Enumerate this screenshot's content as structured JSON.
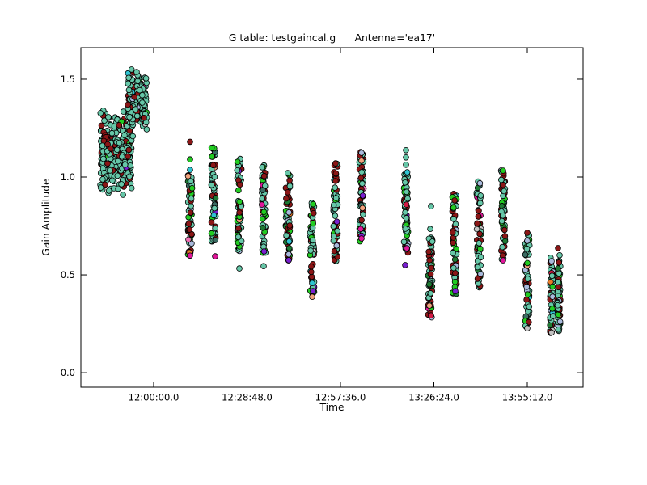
{
  "chart_data": {
    "type": "scatter",
    "title": "G table: testgaincal.g      Antenna='ea17'",
    "xlabel": "Time",
    "ylabel": "Gain Amplitude",
    "grid": false,
    "legend": "none",
    "background_color": "#ffffff",
    "axis_color": "#000000",
    "xlim_seconds": [
      41854,
      51144
    ],
    "ylim": [
      -0.074,
      1.661
    ],
    "x_ticks": [
      {
        "seconds": 43200,
        "label": "12:00:00.0"
      },
      {
        "seconds": 44928,
        "label": "12:28:48.0"
      },
      {
        "seconds": 46656,
        "label": "12:57:36.0"
      },
      {
        "seconds": 48384,
        "label": "13:26:24.0"
      },
      {
        "seconds": 50112,
        "label": "13:55:12.0"
      }
    ],
    "y_ticks": [
      {
        "value": 0.0,
        "label": "0.0"
      },
      {
        "value": 0.5,
        "label": "0.5"
      },
      {
        "value": 1.0,
        "label": "1.0"
      },
      {
        "value": 1.5,
        "label": "1.5"
      }
    ],
    "marker": {
      "radius": 3.4,
      "edge_color": "#000000",
      "edge_width": 0.8
    },
    "palette": {
      "aquamarine": "#66c7a8",
      "darkred": "#8b1616",
      "green": "#22cc22",
      "darkgreen": "#1e7a33",
      "lightblue": "#a9badc",
      "cyan": "#2fc4d2",
      "teal": "#3a6b62",
      "magenta": "#e0169a",
      "purple": "#7a1fd0",
      "peach": "#f0a27c",
      "gray": "#c4c4c4",
      "crimson": "#d41944",
      "orange": "#e87c28",
      "pink": "#f06eb4"
    },
    "blob_weights": [
      [
        "aquamarine",
        0.73
      ],
      [
        "darkred",
        0.21
      ],
      [
        "green",
        0.025
      ],
      [
        "darkgreen",
        0.01
      ],
      [
        "lightblue",
        0.008
      ],
      [
        "cyan",
        0.005
      ],
      [
        "magenta",
        0.004
      ],
      [
        "purple",
        0.004
      ],
      [
        "pink",
        0.002
      ],
      [
        "gray",
        0.002
      ]
    ],
    "strip_weights": [
      [
        "aquamarine",
        0.42
      ],
      [
        "darkred",
        0.28
      ],
      [
        "green",
        0.12
      ],
      [
        "darkgreen",
        0.04
      ],
      [
        "lightblue",
        0.03
      ],
      [
        "cyan",
        0.02
      ],
      [
        "teal",
        0.02
      ],
      [
        "magenta",
        0.012
      ],
      [
        "purple",
        0.012
      ],
      [
        "peach",
        0.015
      ],
      [
        "gray",
        0.012
      ],
      [
        "crimson",
        0.01
      ],
      [
        "orange",
        0.005
      ],
      [
        "pink",
        0.004
      ]
    ],
    "blobs": [
      {
        "t_center": 42504,
        "t_halfwidth": 290,
        "amp_mean": 1.13,
        "amp_sigma": 0.1,
        "amp_min": 0.895,
        "amp_max": 1.36,
        "count": 300
      },
      {
        "t_center": 42895,
        "t_halfwidth": 185,
        "amp_mean": 1.385,
        "amp_sigma": 0.082,
        "amp_min": 1.2,
        "amp_max": 1.55,
        "count": 175
      }
    ],
    "strips": [
      {
        "t": 43873,
        "amp_min": 0.6,
        "amp_max": 1.01,
        "count": 60,
        "t_jitter": 40
      },
      {
        "t": 44307,
        "amp_min": 0.67,
        "amp_max": 1.16,
        "count": 65,
        "t_jitter": 40
      },
      {
        "t": 44786,
        "amp_min": 0.615,
        "amp_max": 1.1,
        "count": 65,
        "t_jitter": 40
      },
      {
        "t": 45235,
        "amp_min": 0.61,
        "amp_max": 1.065,
        "count": 60,
        "t_jitter": 40
      },
      {
        "t": 45684,
        "amp_min": 0.57,
        "amp_max": 1.06,
        "count": 65,
        "t_jitter": 40
      },
      {
        "t": 46132,
        "amp_min": 0.4,
        "amp_max": 0.88,
        "count": 60,
        "t_jitter": 40
      },
      {
        "t": 46566,
        "amp_min": 0.57,
        "amp_max": 1.07,
        "count": 65,
        "t_jitter": 40
      },
      {
        "t": 47045,
        "amp_min": 0.67,
        "amp_max": 1.13,
        "count": 60,
        "t_jitter": 40
      },
      {
        "t": 47868,
        "amp_min": 0.61,
        "amp_max": 1.025,
        "count": 65,
        "t_jitter": 40
      },
      {
        "t": 48316,
        "amp_min": 0.28,
        "amp_max": 0.71,
        "count": 60,
        "t_jitter": 40
      },
      {
        "t": 48765,
        "amp_min": 0.4,
        "amp_max": 0.925,
        "count": 65,
        "t_jitter": 40
      },
      {
        "t": 49214,
        "amp_min": 0.43,
        "amp_max": 0.98,
        "count": 65,
        "t_jitter": 40
      },
      {
        "t": 49663,
        "amp_min": 0.57,
        "amp_max": 1.04,
        "count": 60,
        "t_jitter": 40
      },
      {
        "t": 50112,
        "amp_min": 0.23,
        "amp_max": 0.72,
        "count": 60,
        "t_jitter": 40
      },
      {
        "t": 50561,
        "amp_min": 0.2,
        "amp_max": 0.6,
        "count": 55,
        "t_jitter": 28
      },
      {
        "t": 50695,
        "amp_min": 0.21,
        "amp_max": 0.58,
        "count": 55,
        "t_jitter": 28
      }
    ],
    "outliers": [
      {
        "t": 43873,
        "amp": 1.18,
        "color": "darkred"
      },
      {
        "t": 43873,
        "amp": 1.09,
        "color": "green"
      },
      {
        "t": 43873,
        "amp": 1.037,
        "color": "cyan"
      },
      {
        "t": 43873,
        "amp": 0.598,
        "color": "magenta"
      },
      {
        "t": 44337,
        "amp": 0.595,
        "color": "magenta"
      },
      {
        "t": 44786,
        "amp": 0.533,
        "color": "aquamarine"
      },
      {
        "t": 45235,
        "amp": 0.545,
        "color": "aquamarine"
      },
      {
        "t": 45244,
        "amp": 0.62,
        "color": "purple"
      },
      {
        "t": 45699,
        "amp": 0.605,
        "color": "lightblue"
      },
      {
        "t": 45699,
        "amp": 0.575,
        "color": "purple"
      },
      {
        "t": 46132,
        "amp": 0.458,
        "color": "cyan"
      },
      {
        "t": 46147,
        "amp": 0.417,
        "color": "purple"
      },
      {
        "t": 46132,
        "amp": 0.388,
        "color": "peach"
      },
      {
        "t": 46566,
        "amp": 1.07,
        "color": "darkred"
      },
      {
        "t": 47045,
        "amp": 1.124,
        "color": "lightblue"
      },
      {
        "t": 47045,
        "amp": 1.083,
        "color": "peach"
      },
      {
        "t": 47030,
        "amp": 0.735,
        "color": "magenta"
      },
      {
        "t": 47045,
        "amp": 0.7,
        "color": "purple"
      },
      {
        "t": 47045,
        "amp": 0.686,
        "color": "magenta"
      },
      {
        "t": 47868,
        "amp": 1.137,
        "color": "aquamarine"
      },
      {
        "t": 47868,
        "amp": 1.1,
        "color": "aquamarine"
      },
      {
        "t": 47868,
        "amp": 1.063,
        "color": "aquamarine"
      },
      {
        "t": 47883,
        "amp": 0.636,
        "color": "magenta"
      },
      {
        "t": 47853,
        "amp": 0.55,
        "color": "purple"
      },
      {
        "t": 48331,
        "amp": 0.851,
        "color": "aquamarine"
      },
      {
        "t": 48316,
        "amp": 0.735,
        "color": "aquamarine"
      },
      {
        "t": 48301,
        "amp": 0.343,
        "color": "peach"
      },
      {
        "t": 48331,
        "amp": 0.293,
        "color": "crimson"
      },
      {
        "t": 48780,
        "amp": 0.417,
        "color": "purple"
      },
      {
        "t": 49663,
        "amp": 1.033,
        "color": "green"
      },
      {
        "t": 49663,
        "amp": 0.574,
        "color": "magenta"
      },
      {
        "t": 50112,
        "amp": 0.715,
        "color": "darkred"
      },
      {
        "t": 50112,
        "amp": 0.674,
        "color": "lightblue"
      },
      {
        "t": 50112,
        "amp": 0.227,
        "color": "gray"
      },
      {
        "t": 50561,
        "amp": 0.57,
        "color": "lightblue"
      },
      {
        "t": 50680,
        "amp": 0.637,
        "color": "darkred"
      },
      {
        "t": 50710,
        "amp": 0.6,
        "color": "aquamarine"
      }
    ]
  }
}
